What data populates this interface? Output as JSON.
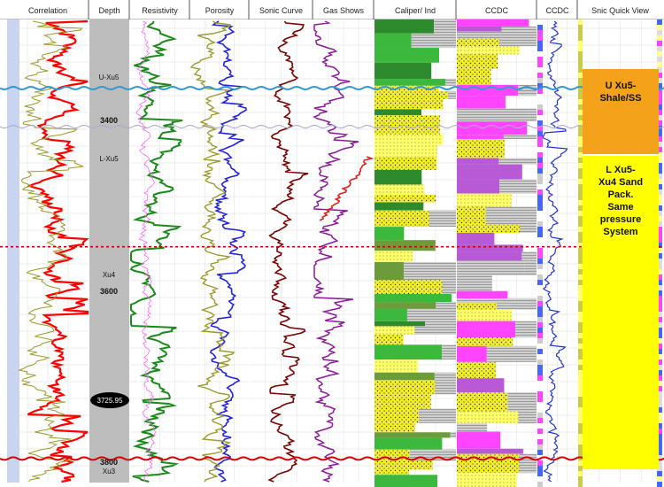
{
  "tracks": [
    {
      "label": "Correlation",
      "left": 8,
      "right": 100
    },
    {
      "label": "Depth",
      "left": 101,
      "right": 146
    },
    {
      "label": "Resistivity",
      "left": 147,
      "right": 214
    },
    {
      "label": "Porosity",
      "left": 215,
      "right": 281
    },
    {
      "label": "Sonic Curve",
      "left": 282,
      "right": 353
    },
    {
      "label": "Gas Shows",
      "left": 354,
      "right": 422
    },
    {
      "label": "Caliper/ Ind",
      "left": 423,
      "right": 515
    },
    {
      "label": "CCDC",
      "left": 516,
      "right": 606
    },
    {
      "label": "CCDC",
      "left": 607,
      "right": 652
    },
    {
      "label": "Snic Quick View",
      "left": 653,
      "right": 748
    }
  ],
  "depth_labels": [
    "3400",
    "3600",
    "3800"
  ],
  "depth_callout": "3725.95",
  "formation_markers": [
    {
      "label": "U-Xu5",
      "color": "#3399cc"
    },
    {
      "label": "L-Xu5",
      "color": "#bbbbdd"
    },
    {
      "label": "Xu4",
      "color": "#cc0000"
    },
    {
      "label": "Xu3",
      "color": "#dd0000"
    }
  ],
  "zones": [
    {
      "label": "U Xu5-\nShale/SS",
      "color": "#f5a21b"
    },
    {
      "label": "L Xu5-\nXu4 Sand\nPack.\nSame\npressure\nSystem",
      "color": "#ffff00"
    }
  ],
  "chart_data": {
    "type": "line",
    "title": "",
    "ylabel": "Depth",
    "ylim": [
      3270,
      3810
    ],
    "depth_ticks": [
      3400,
      3600,
      3800
    ],
    "formation_tops": [
      {
        "name": "U-Xu5",
        "depth": 3350
      },
      {
        "name": "L-Xu5",
        "depth": 3395
      },
      {
        "name": "Xu4",
        "depth": 3535
      },
      {
        "name": "Xu3",
        "depth": 3782
      }
    ],
    "annotation_depth": 3725.95,
    "series": [
      {
        "name": "Correlation",
        "color": "#ff0000"
      },
      {
        "name": "Resistivity",
        "color": "#1a8a1a"
      },
      {
        "name": "Porosity",
        "color": "#2222dd"
      },
      {
        "name": "Sonic Curve",
        "color": "#7a0000"
      },
      {
        "name": "Gas Shows",
        "color": "#8b1a9a"
      }
    ]
  }
}
